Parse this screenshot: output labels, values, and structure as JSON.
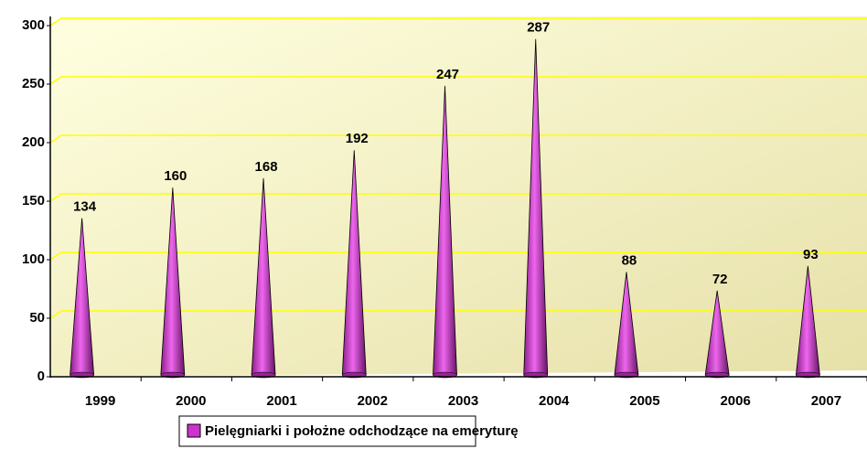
{
  "chart_data": {
    "type": "bar",
    "categories": [
      "1999",
      "2000",
      "2001",
      "2002",
      "2003",
      "2004",
      "2005",
      "2006",
      "2007"
    ],
    "series": [
      {
        "name": "Pielęgniarki i położne odchodzące na emeryturę",
        "color": "#cc33cc",
        "values": [
          134,
          160,
          168,
          192,
          247,
          287,
          88,
          72,
          93
        ]
      }
    ],
    "ylim": [
      0,
      300
    ],
    "yticks": [
      0,
      50,
      100,
      150,
      200,
      250,
      300
    ],
    "grid": true,
    "legend": "bottom"
  }
}
